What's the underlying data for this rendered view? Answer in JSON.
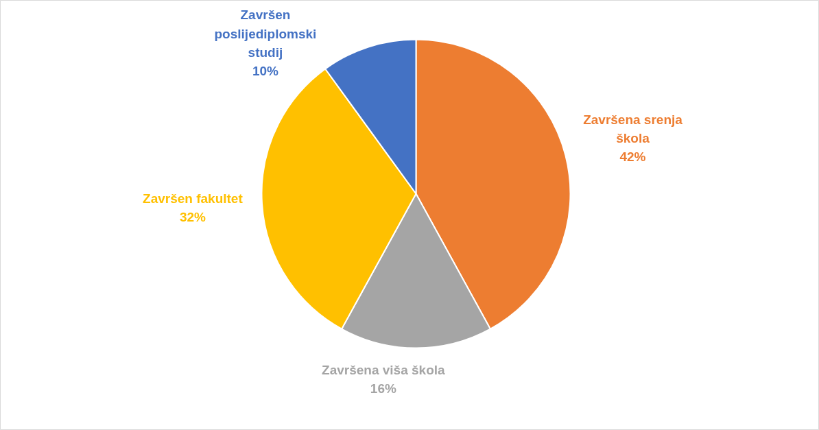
{
  "chart_data": {
    "type": "pie",
    "categories": [
      "Završena srenja škola",
      "Završena viša škola",
      "Završen fakultet",
      "Završen poslijediplomski studij"
    ],
    "values": [
      42,
      16,
      32,
      10
    ],
    "value_labels": [
      "42%",
      "16%",
      "32%",
      "10%"
    ],
    "colors": [
      "#ed7d31",
      "#a5a5a5",
      "#ffc000",
      "#4472c4"
    ],
    "legend": false
  }
}
